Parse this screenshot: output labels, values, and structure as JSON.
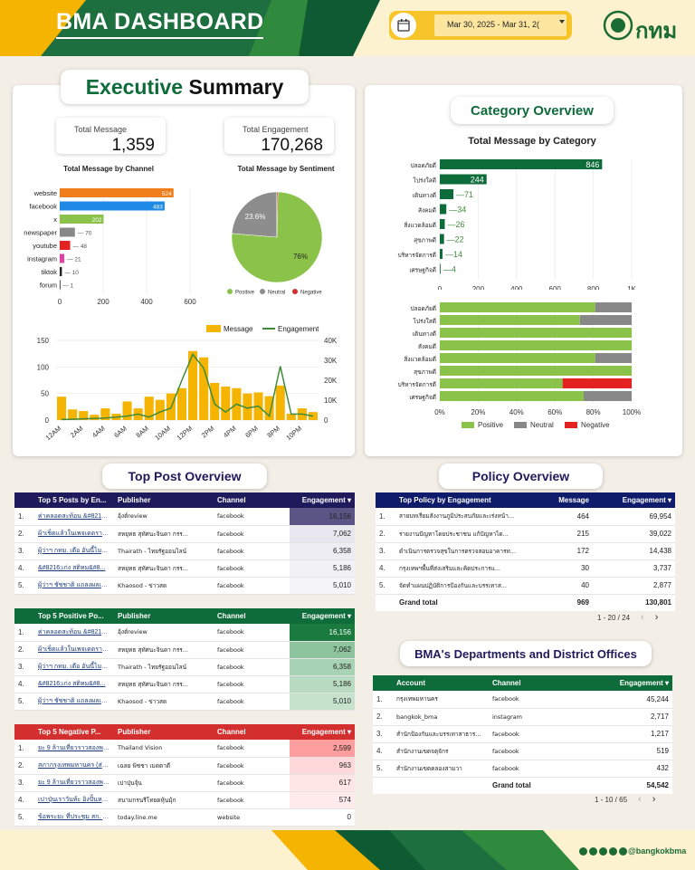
{
  "header": {
    "title": "BMA DASHBOARD",
    "date_range": "Mar 30, 2025 - Mar 31, 2(",
    "logo_text": "กทม"
  },
  "exec": {
    "title_part1": "Executive",
    "title_part2": "Summary",
    "kpi_message_label": "Total Message",
    "kpi_message_value": "1,359",
    "kpi_engagement_label": "Total Engagement",
    "kpi_engagement_value": "170,268",
    "channel_title": "Total Message by Channel",
    "sentiment_title": "Total Message by Sentiment"
  },
  "category": {
    "title": "Category Overview",
    "chart_title": "Total Message by Category"
  },
  "top_post": {
    "title": "Top Post Overview"
  },
  "policy": {
    "title": "Policy Overview"
  },
  "dept": {
    "title": "BMA's Departments and District Offices"
  },
  "colors": {
    "dark_green": "#0e6b3a",
    "orange": "#f07e1b",
    "blue": "#1e88e5",
    "light_green": "#8bc34a",
    "grey": "#888888",
    "red": "#e52222",
    "amber": "#f5b400",
    "navy": "#1f1a5c",
    "neg_red": "#e53935"
  },
  "chart_data": [
    {
      "type": "bar",
      "name": "Total Message by Channel",
      "categories": [
        "website",
        "facebook",
        "x",
        "newspaper",
        "youtube",
        "instagram",
        "tiktok",
        "forum"
      ],
      "values": [
        524,
        483,
        202,
        70,
        48,
        21,
        10,
        1
      ],
      "xlim": [
        0,
        600
      ],
      "xticks": [
        "0",
        "200",
        "400",
        "600"
      ]
    },
    {
      "type": "pie",
      "name": "Total Message by Sentiment",
      "labels": [
        "Positive",
        "Neutral",
        "Negative"
      ],
      "values": [
        76,
        23.6,
        0.4
      ],
      "slice_labels": [
        "76%",
        "23.6%",
        ""
      ],
      "colors": [
        "#8bc34a",
        "#8d8d8d",
        "#d32f2f"
      ]
    },
    {
      "type": "bar",
      "categories": [
        "ปลอดภัยดี",
        "โปร่งใสดี",
        "เดินทางดี",
        "สังคมดี",
        "สิ่งแวดล้อมดี",
        "สุขภาพดี",
        "บริหารจัดการดี",
        "เศรษฐกิจดี"
      ],
      "values": [
        846,
        244,
        71,
        34,
        26,
        22,
        14,
        4
      ],
      "xlim": [
        0,
        1000
      ],
      "xticks": [
        "0",
        "200",
        "400",
        "600",
        "800",
        "1K"
      ]
    },
    {
      "type": "bar",
      "stacked": true,
      "categories": [
        "ปลอดภัยดี",
        "โปร่งใสดี",
        "เดินทางดี",
        "สังคมดี",
        "สิ่งแวดล้อมดี",
        "สุขภาพดี",
        "บริหารจัดการดี",
        "เศรษฐกิจดี"
      ],
      "series": [
        {
          "name": "Positive",
          "values": [
            81,
            73,
            100,
            100,
            81,
            100,
            64,
            75
          ]
        },
        {
          "name": "Neutral",
          "values": [
            19,
            27,
            0,
            0,
            19,
            0,
            0,
            25
          ]
        },
        {
          "name": "Negative",
          "values": [
            0,
            0,
            0,
            0,
            0,
            0,
            36,
            0
          ]
        }
      ],
      "xticks": [
        "0%",
        "20%",
        "40%",
        "60%",
        "80%",
        "100%"
      ]
    },
    {
      "type": "bar+line",
      "categories": [
        "12AM",
        "1AM",
        "2AM",
        "3AM",
        "4AM",
        "5AM",
        "6AM",
        "7AM",
        "8AM",
        "9AM",
        "10AM",
        "11AM",
        "12PM",
        "1PM",
        "2PM",
        "3PM",
        "4PM",
        "5PM",
        "6PM",
        "7PM",
        "8PM",
        "9PM",
        "10PM",
        "11PM"
      ],
      "xticks": [
        "12AM",
        "2AM",
        "4AM",
        "6AM",
        "8AM",
        "10AM",
        "12PM",
        "2PM",
        "4PM",
        "6PM",
        "8PM",
        "10PM"
      ],
      "series": [
        {
          "name": "Message",
          "values": [
            44,
            20,
            17,
            10,
            22,
            12,
            35,
            22,
            44,
            38,
            50,
            60,
            130,
            118,
            70,
            63,
            60,
            50,
            52,
            45,
            65,
            12,
            22,
            15
          ]
        },
        {
          "name": "Engagement",
          "values": [
            300,
            400,
            600,
            800,
            1000,
            1500,
            2000,
            3000,
            1500,
            4000,
            6000,
            20000,
            33000,
            26000,
            8000,
            4000,
            8000,
            6000,
            7000,
            2000,
            27000,
            3000,
            3000,
            2000
          ]
        }
      ],
      "y1lim": [
        0,
        150
      ],
      "y1ticks": [
        "0",
        "50",
        "100",
        "150"
      ],
      "y2lim": [
        0,
        40000
      ],
      "y2ticks": [
        "0",
        "10K",
        "20K",
        "30K",
        "40K"
      ]
    }
  ],
  "tables": {
    "top5_engagement": {
      "headers": [
        "Top 5 Posts by En...",
        "Publisher",
        "Channel",
        "Engagement ▾"
      ],
      "rows": [
        [
          "1.",
          "ค่าคลอดสะท้อน &#8216;...",
          "อุ้งต์review",
          "facebook",
          "16,156"
        ],
        [
          "2.",
          "ผ้าเช็ดแล้วในเพจเดดราว ...",
          "สหยุทธ สุทัศนะจินดา กรร...",
          "facebook",
          "7,062"
        ],
        [
          "3.",
          "ผู้ว่าฯ กทม. เตือ อันนี้ไมก่...",
          "Thairath - ไทยรัฐออนไลน์",
          "facebook",
          "6,358"
        ],
        [
          "4.",
          "&#8216;เก่ง สติหม&#8...",
          "สหยุทธ สุทัศนะจินดา กรร...",
          "facebook",
          "5,186"
        ],
        [
          "5.",
          "ผู้ว่าฯ ชัชชาติ แถลงผลเฝ้ม...",
          "Khaosod - ข่าวสด",
          "facebook",
          "5,010"
        ]
      ]
    },
    "top5_positive": {
      "headers": [
        "Top 5 Positive Po...",
        "Publisher",
        "Channel",
        "Engagement ▾"
      ],
      "rows": [
        [
          "1.",
          "ค่าคลอดสะท้อน &#8216;...",
          "อุ้งต์review",
          "facebook",
          "16,156"
        ],
        [
          "2.",
          "ผ้าเช็ดแล้วในเพจเดดราว ...",
          "สหยุทธ สุทัศนะจินดา กรร...",
          "facebook",
          "7,062"
        ],
        [
          "3.",
          "ผู้ว่าฯ กทม. เตือ อันนี้ไมก่...",
          "Thairath - ไทยรัฐออนไลน์",
          "facebook",
          "6,358"
        ],
        [
          "4.",
          "&#8216;เก่ง สติหม&#8...",
          "สหยุทธ สุทัศนะจินดา กรร...",
          "facebook",
          "5,186"
        ],
        [
          "5.",
          "ผู้ว่าฯ ชัชชาติ แถลงผลเฝ้ม...",
          "Khaosod - ข่าวสด",
          "facebook",
          "5,010"
        ]
      ]
    },
    "top5_negative": {
      "headers": [
        "Top 5 Negative P...",
        "Publisher",
        "Channel",
        "Engagement ▾"
      ],
      "rows": [
        [
          "1.",
          "ยะ 9 ล้านเที่ยวราวสองพร...",
          "Thailand Vision",
          "facebook",
          "2,599"
        ],
        [
          "2.",
          "สภากรุงเทพมหานคร (ส่ข ...",
          "เฉลย พิชชา เมตตาดี",
          "facebook",
          "963"
        ],
        [
          "3.",
          "ยะ 9 ล้านเที่ยวราวสองพร...",
          "เปาปุ่นจุ้น",
          "facebook",
          "617"
        ],
        [
          "4.",
          "เปาปุ่นเราวันท้ะ อิงปั้นหลังม...",
          "สนามกรนรีโทยดหุ้นมุ้ก",
          "facebook",
          "574"
        ],
        [
          "5.",
          "ข้อพระยะ ที่ประชุม สก. แตะ...",
          "today.line.me",
          "website",
          "0"
        ]
      ]
    },
    "policy": {
      "headers": [
        "Top Policy by Engagement",
        "Message",
        "Engagement ▾"
      ],
      "rows": [
        [
          "1.",
          "สายบทเรียมสังงานภูมิประสบภัยและเร่งหน้า...",
          "464",
          "69,954"
        ],
        [
          "2.",
          "รายงานปัญหาโดยประชาชน แก้ปัญหาได...",
          "215",
          "39,022"
        ],
        [
          "3.",
          "ดำเนินการตรวจสุขในการตรวจสอบอาคารท...",
          "172",
          "14,438"
        ],
        [
          "4.",
          "กรุงเทพฯพื้นที่ส่งเสริมและคิดประการแ...",
          "30",
          "3,737"
        ],
        [
          "5.",
          "จัดทำแผนปฏิบัติการป้องกันและบรรเทาส...",
          "40",
          "2,877"
        ]
      ],
      "grand_total": [
        "Grand total",
        "969",
        "130,801"
      ],
      "pager": "1 - 20 / 24"
    },
    "dept": {
      "headers": [
        "Account",
        "Channel",
        "Engagement ▾"
      ],
      "rows": [
        [
          "1.",
          "กรุงเทพมหานคร",
          "facebook",
          "45,244"
        ],
        [
          "2.",
          "bangkok_bma",
          "instagram",
          "2,717"
        ],
        [
          "3.",
          "สำนักป้องกันและบรรเทาสาธารณภัย...",
          "facebook",
          "1,217"
        ],
        [
          "4.",
          "สำนักงานเขตจตุจักร",
          "facebook",
          "519"
        ],
        [
          "5.",
          "สำนักงานเขตคลองสามวา",
          "facebook",
          "432"
        ]
      ],
      "grand_total": [
        "Grand total",
        "54,542"
      ],
      "pager": "1 - 10 / 65"
    }
  },
  "footer": {
    "handle": "@bangkokbma"
  }
}
